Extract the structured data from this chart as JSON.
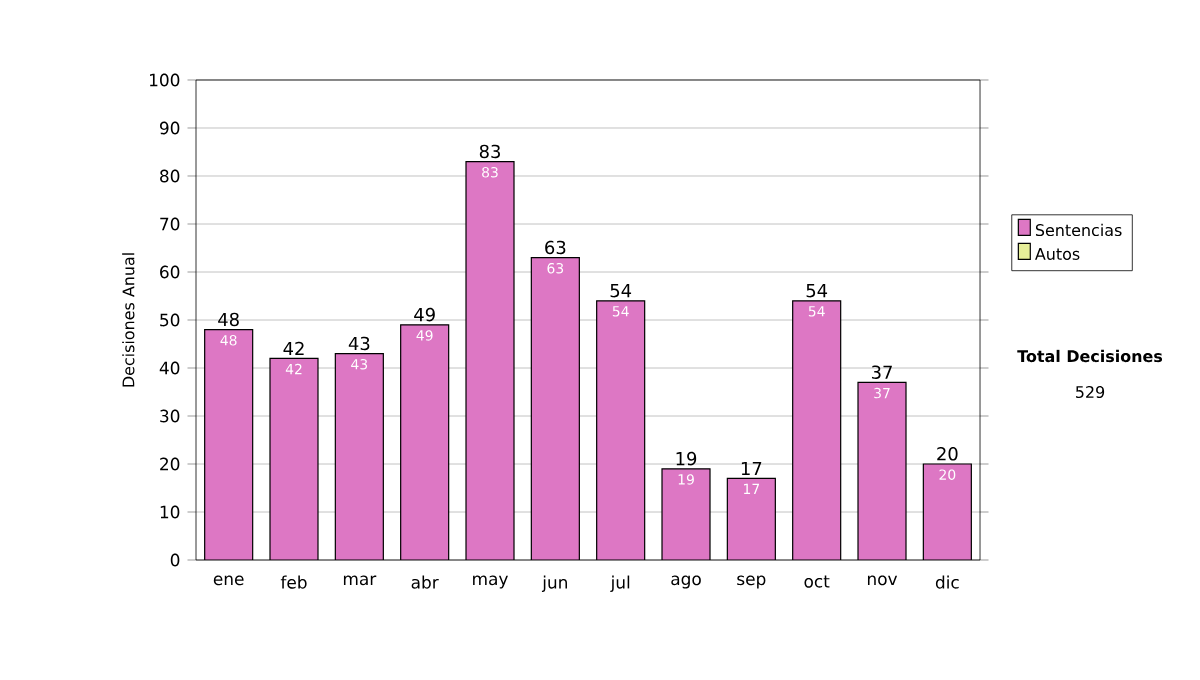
{
  "chart_data": {
    "type": "bar",
    "stacked": true,
    "ylabel": "Decisiones Anual",
    "categories": [
      "ene",
      "feb",
      "mar",
      "abr",
      "may",
      "jun",
      "jul",
      "ago",
      "sep",
      "oct",
      "nov",
      "dic"
    ],
    "series": [
      {
        "name": "Sentencias",
        "color": "#dd77c4",
        "values": [
          48,
          42,
          43,
          49,
          83,
          63,
          54,
          19,
          17,
          54,
          37,
          20
        ],
        "value_labels": [
          "48",
          "42",
          "43",
          "49",
          "83",
          "63",
          "54",
          "19",
          "17",
          "54",
          "37",
          "20"
        ]
      },
      {
        "name": "Autos",
        "color": "#e6ee99",
        "values": [
          0,
          0,
          0,
          0,
          0,
          0,
          0,
          0,
          0,
          0,
          0,
          0
        ]
      }
    ],
    "totals": [
      "48",
      "42",
      "43",
      "49",
      "83",
      "63",
      "54",
      "19",
      "17",
      "54",
      "37",
      "20"
    ],
    "ylim": [
      0,
      100
    ],
    "yticks": [
      0,
      10,
      20,
      30,
      40,
      50,
      60,
      70,
      80,
      90,
      100
    ],
    "grid": "y",
    "legend": "right",
    "annotations": [
      "Total Decisiones",
      "529"
    ]
  }
}
